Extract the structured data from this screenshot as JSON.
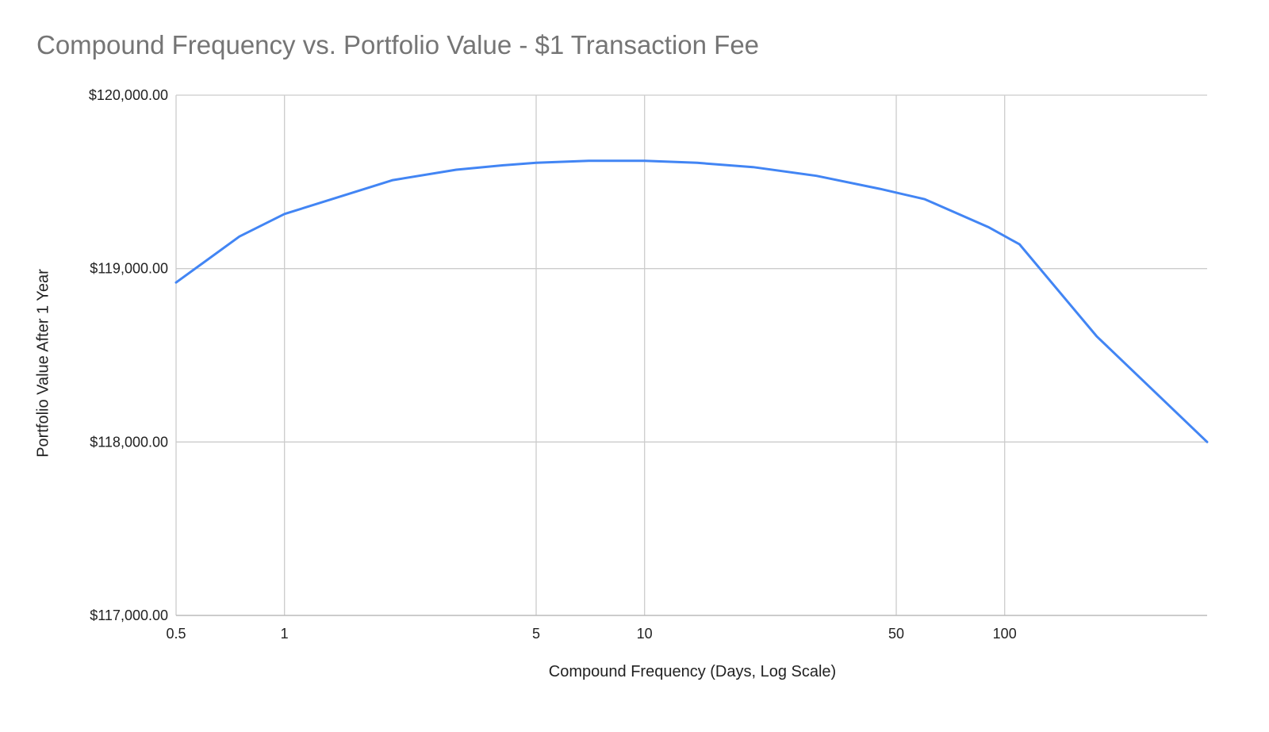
{
  "chart_data": {
    "type": "line",
    "title": "Compound Frequency vs. Portfolio Value - $1 Transaction Fee",
    "xlabel": "Compound Frequency (Days, Log Scale)",
    "ylabel": "Portfolio Value After 1 Year",
    "x_scale": "log",
    "xlim": [
      0.5,
      365
    ],
    "ylim": [
      117000,
      120000
    ],
    "grid": true,
    "legend": "none",
    "x_ticks": [
      {
        "value": 0.5,
        "label": "0.5"
      },
      {
        "value": 1,
        "label": "1"
      },
      {
        "value": 5,
        "label": "5"
      },
      {
        "value": 10,
        "label": "10"
      },
      {
        "value": 50,
        "label": "50"
      },
      {
        "value": 100,
        "label": "100"
      }
    ],
    "y_ticks": [
      {
        "value": 117000,
        "label": "$117,000.00"
      },
      {
        "value": 118000,
        "label": "$118,000.00"
      },
      {
        "value": 119000,
        "label": "$119,000.00"
      },
      {
        "value": 120000,
        "label": "$120,000.00"
      }
    ],
    "series": [
      {
        "color": "#4285f4",
        "x": [
          0.5,
          0.75,
          1,
          2,
          3,
          4,
          5,
          7,
          10,
          14,
          20,
          30,
          45,
          60,
          90,
          110,
          180,
          365
        ],
        "y": [
          118920,
          119185,
          119315,
          119510,
          119570,
          119595,
          119610,
          119622,
          119622,
          119610,
          119585,
          119535,
          119460,
          119400,
          119240,
          119140,
          118610,
          118000
        ]
      }
    ]
  }
}
